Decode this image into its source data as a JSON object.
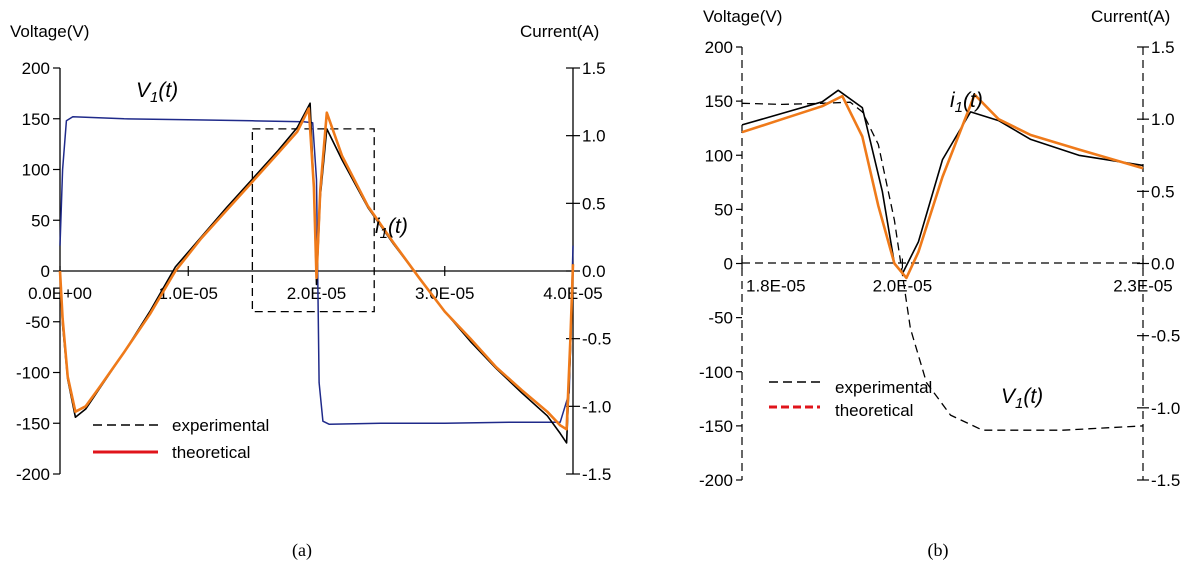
{
  "colors": {
    "experimental": "#000000",
    "theoretical": "#ef7a1a",
    "voltage_a": "#1f2a8a",
    "legend_line_a": "#e0141b",
    "legend_line_b": "#e0141b",
    "box": "#000000"
  },
  "chart_data": [
    {
      "type": "line",
      "caption": "(a)",
      "y_left_label": "Voltage(V)",
      "y_right_label": "Current(A)",
      "xlim": [
        0,
        4e-05
      ],
      "ylim_left": [
        -200,
        200
      ],
      "ylim_right": [
        -1.5,
        1.5
      ],
      "x_ticks": [
        "0.0E+00",
        "1.0E-05",
        "2.0E-05",
        "3.0E-05",
        "4.0E-05"
      ],
      "x_tick_values": [
        0,
        1e-05,
        2e-05,
        3e-05,
        4e-05
      ],
      "y_left_ticks": [
        "200",
        "150",
        "100",
        "50",
        "0",
        "-50",
        "-100",
        "-150",
        "-200"
      ],
      "y_left_tick_values": [
        200,
        150,
        100,
        50,
        0,
        -50,
        -100,
        -150,
        -200
      ],
      "y_right_ticks": [
        "1.5",
        "1.0",
        "0.5",
        "0.0",
        "-0.5",
        "-1.0",
        "-1.5"
      ],
      "y_right_tick_values": [
        1.5,
        1.0,
        0.5,
        0.0,
        -0.5,
        -1.0,
        -1.5
      ],
      "legend": {
        "experimental": "experimental",
        "theoretical": "theoretical"
      },
      "annotations": {
        "voltage": "V",
        "voltage_sub": "1",
        "voltage_t": "(t)",
        "current": "i",
        "current_sub": "1",
        "current_t": "(t)"
      },
      "zoom_box": {
        "x": [
          1.5e-05,
          2.45e-05
        ],
        "y_left": [
          -40,
          140
        ]
      },
      "series": [
        {
          "name": "V1(t)",
          "axis": "left",
          "style": "voltage",
          "x": [
            0,
            2e-07,
            5e-07,
            1e-06,
            5e-06,
            1e-05,
            1.5e-05,
            1.9e-05,
            1.97e-05,
            2e-05,
            2.02e-05,
            2.05e-05,
            2.1e-05,
            2.5e-05,
            3e-05,
            3.5e-05,
            3.9e-05,
            3.97e-05,
            4e-05
          ],
          "y": [
            25,
            100,
            148,
            152,
            150,
            149,
            148,
            147,
            146,
            90,
            -110,
            -148,
            -151,
            -150,
            -150,
            -149,
            -149,
            -120,
            25
          ]
        },
        {
          "name": "i1(t) experimental",
          "axis": "right",
          "style": "experimental",
          "x": [
            0,
            2e-07,
            6e-07,
            1.2e-06,
            2e-06,
            3e-06,
            5e-06,
            7e-06,
            9e-06,
            1.1e-05,
            1.3e-05,
            1.5e-05,
            1.7e-05,
            1.85e-05,
            1.95e-05,
            1.98e-05,
            2e-05,
            2.03e-05,
            2.08e-05,
            2.2e-05,
            2.4e-05,
            2.6e-05,
            2.8e-05,
            3e-05,
            3.2e-05,
            3.4e-05,
            3.6e-05,
            3.8e-05,
            3.9e-05,
            3.95e-05,
            3.98e-05,
            4e-05
          ],
          "y": [
            0.0,
            -0.4,
            -0.8,
            -1.08,
            -1.02,
            -0.88,
            -0.6,
            -0.3,
            0.03,
            0.25,
            0.47,
            0.68,
            0.89,
            1.06,
            1.24,
            0.6,
            -0.1,
            0.55,
            1.05,
            0.82,
            0.47,
            0.2,
            -0.05,
            -0.3,
            -0.52,
            -0.72,
            -0.9,
            -1.07,
            -1.2,
            -1.27,
            -0.6,
            0.05
          ]
        },
        {
          "name": "i1(t) theoretical",
          "axis": "right",
          "style": "theoretical",
          "x": [
            0,
            2e-07,
            6e-07,
            1.2e-06,
            2e-06,
            3e-06,
            5e-06,
            7e-06,
            9e-06,
            1.1e-05,
            1.3e-05,
            1.5e-05,
            1.7e-05,
            1.85e-05,
            1.94e-05,
            1.98e-05,
            2e-05,
            2.03e-05,
            2.08e-05,
            2.2e-05,
            2.4e-05,
            2.6e-05,
            2.8e-05,
            3e-05,
            3.2e-05,
            3.4e-05,
            3.6e-05,
            3.8e-05,
            3.9e-05,
            3.95e-05,
            3.98e-05,
            4e-05
          ],
          "y": [
            0.0,
            -0.35,
            -0.78,
            -1.04,
            -1.0,
            -0.87,
            -0.6,
            -0.32,
            0.0,
            0.24,
            0.45,
            0.66,
            0.87,
            1.03,
            1.2,
            0.62,
            -0.05,
            0.6,
            1.17,
            0.85,
            0.48,
            0.21,
            -0.05,
            -0.3,
            -0.5,
            -0.71,
            -0.88,
            -1.04,
            -1.14,
            -1.17,
            -0.5,
            0.05
          ]
        }
      ]
    },
    {
      "type": "line",
      "caption": "(b)",
      "y_left_label": "Voltage(V)",
      "y_right_label": "Current(A)",
      "xlim": [
        1.8e-05,
        2.3e-05
      ],
      "ylim_left": [
        -200,
        200
      ],
      "ylim_right": [
        -1.5,
        1.5
      ],
      "x_ticks": [
        "1.8E-05",
        "2.0E-05",
        "2.3E-05"
      ],
      "x_tick_values": [
        1.8e-05,
        2e-05,
        2.3e-05
      ],
      "y_left_ticks": [
        "200",
        "150",
        "100",
        "50",
        "0",
        "-50",
        "-100",
        "-150",
        "-200"
      ],
      "y_left_tick_values": [
        200,
        150,
        100,
        50,
        0,
        -50,
        -100,
        -150,
        -200
      ],
      "y_right_ticks": [
        "1.5",
        "1.0",
        "0.5",
        "0.0",
        "-0.5",
        "-1.0",
        "-1.5"
      ],
      "y_right_tick_values": [
        1.5,
        1.0,
        0.5,
        0.0,
        -0.5,
        -1.0,
        -1.5
      ],
      "legend": {
        "experimental": "experimental",
        "theoretical": "theoretical"
      },
      "annotations": {
        "voltage": "V",
        "voltage_sub": "1",
        "voltage_t": "(t)",
        "current": "i",
        "current_sub": "1",
        "current_t": "(t)"
      },
      "series": [
        {
          "name": "V1(t)",
          "axis": "left",
          "style": "voltage",
          "x": [
            1.8e-05,
            1.85e-05,
            1.9e-05,
            1.935e-05,
            1.95e-05,
            1.97e-05,
            1.99e-05,
            2e-05,
            2.01e-05,
            2.03e-05,
            2.06e-05,
            2.1e-05,
            2.2e-05,
            2.3e-05
          ],
          "y": [
            148,
            147,
            148,
            149,
            140,
            110,
            40,
            -10,
            -60,
            -110,
            -140,
            -154,
            -154,
            -150
          ]
        },
        {
          "name": "i1(t) experimental",
          "axis": "right",
          "style": "experimental",
          "x": [
            1.8e-05,
            1.85e-05,
            1.9e-05,
            1.92e-05,
            1.95e-05,
            1.975e-05,
            1.99e-05,
            2e-05,
            2.02e-05,
            2.05e-05,
            2.085e-05,
            2.12e-05,
            2.16e-05,
            2.22e-05,
            2.3e-05
          ],
          "y": [
            0.96,
            1.04,
            1.12,
            1.2,
            1.08,
            0.5,
            0.0,
            -0.07,
            0.15,
            0.72,
            1.05,
            0.99,
            0.86,
            0.75,
            0.68
          ]
        },
        {
          "name": "i1(t) theoretical",
          "axis": "right",
          "style": "theoretical",
          "x": [
            1.8e-05,
            1.85e-05,
            1.9e-05,
            1.925e-05,
            1.95e-05,
            1.97e-05,
            1.99e-05,
            2.005e-05,
            2.02e-05,
            2.05e-05,
            2.09e-05,
            2.12e-05,
            2.16e-05,
            2.22e-05,
            2.3e-05
          ],
          "y": [
            0.91,
            1.0,
            1.09,
            1.16,
            0.88,
            0.4,
            0.0,
            -0.1,
            0.08,
            0.6,
            1.17,
            1.0,
            0.89,
            0.79,
            0.66
          ]
        }
      ]
    }
  ]
}
